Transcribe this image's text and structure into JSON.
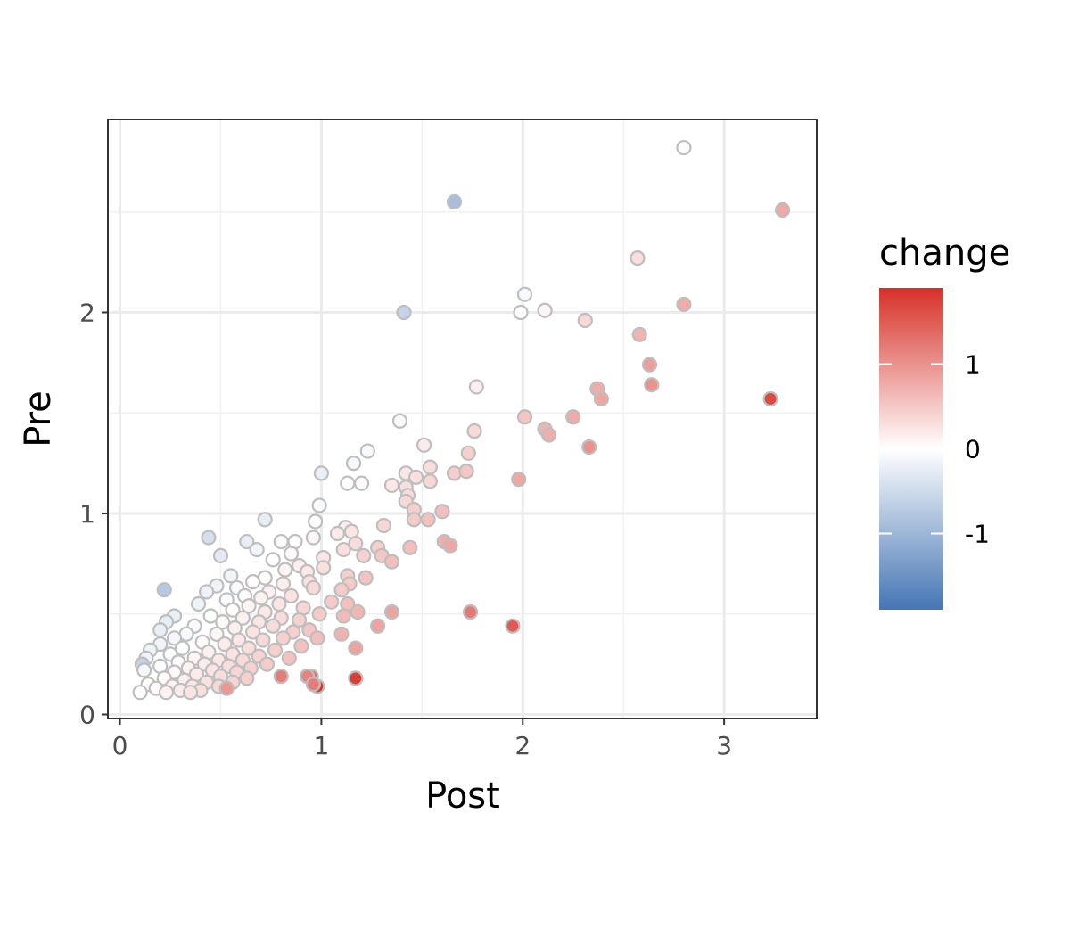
{
  "chart_data": {
    "type": "scatter",
    "title": "",
    "xlabel": "Post",
    "ylabel": "Pre",
    "xlim": [
      -0.06,
      3.46
    ],
    "ylim": [
      -0.02,
      2.96
    ],
    "x_ticks": [
      0,
      1,
      2,
      3
    ],
    "x_tick_labels": [
      "0",
      "1",
      "2",
      "3"
    ],
    "y_ticks": [
      0,
      1,
      2
    ],
    "y_tick_labels": [
      "0",
      "1",
      "2"
    ],
    "grid": true,
    "legend_position": "right",
    "color_variable": "change",
    "color_scale": {
      "type": "diverging",
      "low": "#4575b4",
      "mid": "#ffffff",
      "high": "#d73027",
      "range": [
        -1.9,
        1.9
      ],
      "breaks": [
        1,
        0,
        -1
      ],
      "break_labels": [
        "1",
        "0",
        "-1"
      ]
    },
    "point_stroke": "#bebebe",
    "points": [
      {
        "x": 2.8,
        "y": 2.82,
        "change": -0.02
      },
      {
        "x": 1.66,
        "y": 2.55,
        "change": -0.89
      },
      {
        "x": 3.29,
        "y": 2.51,
        "change": 0.78
      },
      {
        "x": 2.57,
        "y": 2.27,
        "change": 0.3
      },
      {
        "x": 2.01,
        "y": 2.09,
        "change": -0.08
      },
      {
        "x": 2.8,
        "y": 2.04,
        "change": 0.76
      },
      {
        "x": 1.41,
        "y": 2.0,
        "change": -0.59
      },
      {
        "x": 1.99,
        "y": 2.0,
        "change": -0.01
      },
      {
        "x": 2.11,
        "y": 2.01,
        "change": 0.1
      },
      {
        "x": 2.31,
        "y": 1.96,
        "change": 0.35
      },
      {
        "x": 2.58,
        "y": 1.89,
        "change": 0.69
      },
      {
        "x": 2.63,
        "y": 1.74,
        "change": 0.89
      },
      {
        "x": 2.64,
        "y": 1.64,
        "change": 1.0
      },
      {
        "x": 1.77,
        "y": 1.63,
        "change": 0.14
      },
      {
        "x": 2.37,
        "y": 1.62,
        "change": 0.75
      },
      {
        "x": 2.39,
        "y": 1.57,
        "change": 0.82
      },
      {
        "x": 3.23,
        "y": 1.57,
        "change": 1.66
      },
      {
        "x": 2.01,
        "y": 1.48,
        "change": 0.53
      },
      {
        "x": 2.25,
        "y": 1.48,
        "change": 0.77
      },
      {
        "x": 1.39,
        "y": 1.46,
        "change": -0.07
      },
      {
        "x": 1.76,
        "y": 1.41,
        "change": 0.35
      },
      {
        "x": 2.11,
        "y": 1.42,
        "change": 0.69
      },
      {
        "x": 2.13,
        "y": 1.39,
        "change": 0.74
      },
      {
        "x": 1.51,
        "y": 1.34,
        "change": 0.17
      },
      {
        "x": 2.33,
        "y": 1.33,
        "change": 1.0
      },
      {
        "x": 1.23,
        "y": 1.31,
        "change": -0.08
      },
      {
        "x": 1.73,
        "y": 1.3,
        "change": 0.43
      },
      {
        "x": 1.16,
        "y": 1.25,
        "change": -0.09
      },
      {
        "x": 1.54,
        "y": 1.23,
        "change": 0.31
      },
      {
        "x": 1.0,
        "y": 1.2,
        "change": -0.2
      },
      {
        "x": 1.42,
        "y": 1.2,
        "change": 0.22
      },
      {
        "x": 1.66,
        "y": 1.2,
        "change": 0.46
      },
      {
        "x": 1.72,
        "y": 1.21,
        "change": 0.51
      },
      {
        "x": 1.47,
        "y": 1.18,
        "change": 0.29
      },
      {
        "x": 1.98,
        "y": 1.17,
        "change": 0.81
      },
      {
        "x": 1.13,
        "y": 1.15,
        "change": -0.02
      },
      {
        "x": 1.2,
        "y": 1.15,
        "change": 0.05
      },
      {
        "x": 1.35,
        "y": 1.14,
        "change": 0.21
      },
      {
        "x": 1.54,
        "y": 1.16,
        "change": 0.38
      },
      {
        "x": 1.42,
        "y": 1.13,
        "change": 0.29
      },
      {
        "x": 1.43,
        "y": 1.09,
        "change": 0.34
      },
      {
        "x": 1.42,
        "y": 1.06,
        "change": 0.36
      },
      {
        "x": 0.99,
        "y": 1.04,
        "change": -0.05
      },
      {
        "x": 1.46,
        "y": 1.02,
        "change": 0.44
      },
      {
        "x": 1.6,
        "y": 1.01,
        "change": 0.59
      },
      {
        "x": 1.46,
        "y": 0.97,
        "change": 0.49
      },
      {
        "x": 1.53,
        "y": 0.97,
        "change": 0.56
      },
      {
        "x": 0.97,
        "y": 0.96,
        "change": 0.01
      },
      {
        "x": 0.72,
        "y": 0.97,
        "change": -0.25
      },
      {
        "x": 1.31,
        "y": 0.94,
        "change": 0.37
      },
      {
        "x": 1.12,
        "y": 0.93,
        "change": 0.19
      },
      {
        "x": 1.15,
        "y": 0.91,
        "change": 0.24
      },
      {
        "x": 1.08,
        "y": 0.9,
        "change": 0.18
      },
      {
        "x": 0.44,
        "y": 0.88,
        "change": -0.44
      },
      {
        "x": 0.96,
        "y": 0.88,
        "change": 0.08
      },
      {
        "x": 1.61,
        "y": 0.86,
        "change": 0.75
      },
      {
        "x": 1.64,
        "y": 0.84,
        "change": 0.8
      },
      {
        "x": 0.63,
        "y": 0.86,
        "change": -0.23
      },
      {
        "x": 0.8,
        "y": 0.86,
        "change": -0.06
      },
      {
        "x": 0.87,
        "y": 0.86,
        "change": 0.01
      },
      {
        "x": 1.17,
        "y": 0.85,
        "change": 0.32
      },
      {
        "x": 1.44,
        "y": 0.83,
        "change": 0.61
      },
      {
        "x": 1.28,
        "y": 0.83,
        "change": 0.45
      },
      {
        "x": 0.68,
        "y": 0.82,
        "change": -0.14
      },
      {
        "x": 1.11,
        "y": 0.82,
        "change": 0.29
      },
      {
        "x": 0.85,
        "y": 0.8,
        "change": 0.05
      },
      {
        "x": 1.21,
        "y": 0.79,
        "change": 0.42
      },
      {
        "x": 1.3,
        "y": 0.79,
        "change": 0.51
      },
      {
        "x": 0.5,
        "y": 0.79,
        "change": -0.29
      },
      {
        "x": 0.76,
        "y": 0.77,
        "change": -0.01
      },
      {
        "x": 1.01,
        "y": 0.78,
        "change": 0.23
      },
      {
        "x": 1.35,
        "y": 0.76,
        "change": 0.59
      },
      {
        "x": 0.89,
        "y": 0.74,
        "change": 0.15
      },
      {
        "x": 1.01,
        "y": 0.73,
        "change": 0.28
      },
      {
        "x": 0.82,
        "y": 0.72,
        "change": 0.1
      },
      {
        "x": 0.93,
        "y": 0.71,
        "change": 0.22
      },
      {
        "x": 1.13,
        "y": 0.69,
        "change": 0.44
      },
      {
        "x": 0.55,
        "y": 0.69,
        "change": -0.14
      },
      {
        "x": 0.72,
        "y": 0.68,
        "change": 0.04
      },
      {
        "x": 1.22,
        "y": 0.68,
        "change": 0.54
      },
      {
        "x": 0.66,
        "y": 0.66,
        "change": 0.0
      },
      {
        "x": 0.94,
        "y": 0.66,
        "change": 0.28
      },
      {
        "x": 0.81,
        "y": 0.65,
        "change": 0.16
      },
      {
        "x": 1.14,
        "y": 0.65,
        "change": 0.49
      },
      {
        "x": 0.48,
        "y": 0.64,
        "change": -0.16
      },
      {
        "x": 0.96,
        "y": 0.63,
        "change": 0.33
      },
      {
        "x": 0.58,
        "y": 0.63,
        "change": -0.05
      },
      {
        "x": 0.22,
        "y": 0.62,
        "change": -0.74
      },
      {
        "x": 1.1,
        "y": 0.62,
        "change": 0.48
      },
      {
        "x": 0.43,
        "y": 0.61,
        "change": -0.18
      },
      {
        "x": 0.74,
        "y": 0.61,
        "change": 0.13
      },
      {
        "x": 0.85,
        "y": 0.59,
        "change": 0.26
      },
      {
        "x": 0.62,
        "y": 0.59,
        "change": 0.03
      },
      {
        "x": 0.7,
        "y": 0.58,
        "change": 0.12
      },
      {
        "x": 0.53,
        "y": 0.57,
        "change": -0.04
      },
      {
        "x": 1.05,
        "y": 0.56,
        "change": 0.49
      },
      {
        "x": 0.39,
        "y": 0.55,
        "change": -0.16
      },
      {
        "x": 1.13,
        "y": 0.55,
        "change": 0.58
      },
      {
        "x": 0.79,
        "y": 0.55,
        "change": 0.24
      },
      {
        "x": 0.64,
        "y": 0.54,
        "change": 0.1
      },
      {
        "x": 0.91,
        "y": 0.53,
        "change": 0.38
      },
      {
        "x": 0.56,
        "y": 0.52,
        "change": 0.04
      },
      {
        "x": 1.74,
        "y": 0.51,
        "change": 1.23
      },
      {
        "x": 1.35,
        "y": 0.51,
        "change": 0.84
      },
      {
        "x": 1.18,
        "y": 0.51,
        "change": 0.67
      },
      {
        "x": 0.72,
        "y": 0.51,
        "change": 0.21
      },
      {
        "x": 0.99,
        "y": 0.5,
        "change": 0.49
      },
      {
        "x": 1.11,
        "y": 0.49,
        "change": 0.62
      },
      {
        "x": 0.45,
        "y": 0.49,
        "change": -0.04
      },
      {
        "x": 0.27,
        "y": 0.49,
        "change": -0.22
      },
      {
        "x": 0.8,
        "y": 0.48,
        "change": 0.32
      },
      {
        "x": 0.61,
        "y": 0.48,
        "change": 0.13
      },
      {
        "x": 0.89,
        "y": 0.47,
        "change": 0.42
      },
      {
        "x": 0.23,
        "y": 0.46,
        "change": -0.23
      },
      {
        "x": 0.51,
        "y": 0.46,
        "change": 0.05
      },
      {
        "x": 0.69,
        "y": 0.46,
        "change": 0.23
      },
      {
        "x": 1.95,
        "y": 0.44,
        "change": 1.51
      },
      {
        "x": 1.28,
        "y": 0.44,
        "change": 0.84
      },
      {
        "x": 0.37,
        "y": 0.44,
        "change": -0.07
      },
      {
        "x": 0.76,
        "y": 0.44,
        "change": 0.32
      },
      {
        "x": 0.57,
        "y": 0.43,
        "change": 0.14
      },
      {
        "x": 0.2,
        "y": 0.42,
        "change": -0.22
      },
      {
        "x": 0.94,
        "y": 0.42,
        "change": 0.52
      },
      {
        "x": 0.86,
        "y": 0.41,
        "change": 0.45
      },
      {
        "x": 0.66,
        "y": 0.41,
        "change": 0.25
      },
      {
        "x": 0.33,
        "y": 0.4,
        "change": -0.07
      },
      {
        "x": 1.1,
        "y": 0.4,
        "change": 0.7
      },
      {
        "x": 0.48,
        "y": 0.4,
        "change": 0.08
      },
      {
        "x": 0.98,
        "y": 0.38,
        "change": 0.6
      },
      {
        "x": 0.81,
        "y": 0.38,
        "change": 0.43
      },
      {
        "x": 0.27,
        "y": 0.38,
        "change": -0.11
      },
      {
        "x": 0.59,
        "y": 0.37,
        "change": 0.22
      },
      {
        "x": 0.71,
        "y": 0.37,
        "change": 0.34
      },
      {
        "x": 0.41,
        "y": 0.36,
        "change": 0.05
      },
      {
        "x": 0.2,
        "y": 0.35,
        "change": -0.15
      },
      {
        "x": 0.52,
        "y": 0.35,
        "change": 0.17
      },
      {
        "x": 0.9,
        "y": 0.34,
        "change": 0.56
      },
      {
        "x": 1.17,
        "y": 0.33,
        "change": 0.84
      },
      {
        "x": 0.64,
        "y": 0.33,
        "change": 0.31
      },
      {
        "x": 0.31,
        "y": 0.33,
        "change": -0.02
      },
      {
        "x": 0.15,
        "y": 0.32,
        "change": -0.17
      },
      {
        "x": 0.77,
        "y": 0.32,
        "change": 0.45
      },
      {
        "x": 0.44,
        "y": 0.31,
        "change": 0.13
      },
      {
        "x": 0.56,
        "y": 0.3,
        "change": 0.26
      },
      {
        "x": 0.25,
        "y": 0.3,
        "change": -0.05
      },
      {
        "x": 0.69,
        "y": 0.29,
        "change": 0.4
      },
      {
        "x": 0.37,
        "y": 0.28,
        "change": 0.09
      },
      {
        "x": 0.84,
        "y": 0.28,
        "change": 0.56
      },
      {
        "x": 0.13,
        "y": 0.28,
        "change": -0.15
      },
      {
        "x": 0.49,
        "y": 0.27,
        "change": 0.22
      },
      {
        "x": 0.61,
        "y": 0.27,
        "change": 0.34
      },
      {
        "x": 0.29,
        "y": 0.26,
        "change": 0.03
      },
      {
        "x": 0.11,
        "y": 0.25,
        "change": -0.62
      },
      {
        "x": 0.42,
        "y": 0.25,
        "change": 0.17
      },
      {
        "x": 0.73,
        "y": 0.25,
        "change": 0.48
      },
      {
        "x": 0.54,
        "y": 0.24,
        "change": 0.3
      },
      {
        "x": 0.2,
        "y": 0.24,
        "change": -0.04
      },
      {
        "x": 0.34,
        "y": 0.23,
        "change": 0.11
      },
      {
        "x": 0.65,
        "y": 0.23,
        "change": 0.42
      },
      {
        "x": 0.46,
        "y": 0.22,
        "change": 0.24
      },
      {
        "x": 0.12,
        "y": 0.22,
        "change": -0.1
      },
      {
        "x": 0.27,
        "y": 0.21,
        "change": 0.06
      },
      {
        "x": 0.58,
        "y": 0.21,
        "change": 0.37
      },
      {
        "x": 0.38,
        "y": 0.2,
        "change": 0.18
      },
      {
        "x": 0.95,
        "y": 0.19,
        "change": 1.3
      },
      {
        "x": 0.8,
        "y": 0.19,
        "change": 1.2
      },
      {
        "x": 1.17,
        "y": 0.18,
        "change": 1.76
      },
      {
        "x": 0.93,
        "y": 0.19,
        "change": 1.15
      },
      {
        "x": 0.5,
        "y": 0.19,
        "change": 0.31
      },
      {
        "x": 0.63,
        "y": 0.18,
        "change": 0.45
      },
      {
        "x": 0.22,
        "y": 0.18,
        "change": 0.04
      },
      {
        "x": 0.32,
        "y": 0.17,
        "change": 0.15
      },
      {
        "x": 0.43,
        "y": 0.16,
        "change": 0.27
      },
      {
        "x": 0.56,
        "y": 0.16,
        "change": 0.4
      },
      {
        "x": 0.14,
        "y": 0.15,
        "change": -0.01
      },
      {
        "x": 0.98,
        "y": 0.14,
        "change": 1.84
      },
      {
        "x": 0.96,
        "y": 0.15,
        "change": 1.2
      },
      {
        "x": 0.26,
        "y": 0.14,
        "change": 0.12
      },
      {
        "x": 0.36,
        "y": 0.14,
        "change": 0.22
      },
      {
        "x": 0.49,
        "y": 0.14,
        "change": 0.35
      },
      {
        "x": 0.53,
        "y": 0.13,
        "change": 0.95
      },
      {
        "x": 0.18,
        "y": 0.13,
        "change": 0.05
      },
      {
        "x": 0.3,
        "y": 0.12,
        "change": 0.18
      },
      {
        "x": 0.4,
        "y": 0.12,
        "change": 0.28
      },
      {
        "x": 0.1,
        "y": 0.11,
        "change": 0.01
      },
      {
        "x": 0.23,
        "y": 0.11,
        "change": 0.12
      },
      {
        "x": 0.35,
        "y": 0.11,
        "change": 0.24
      }
    ]
  }
}
